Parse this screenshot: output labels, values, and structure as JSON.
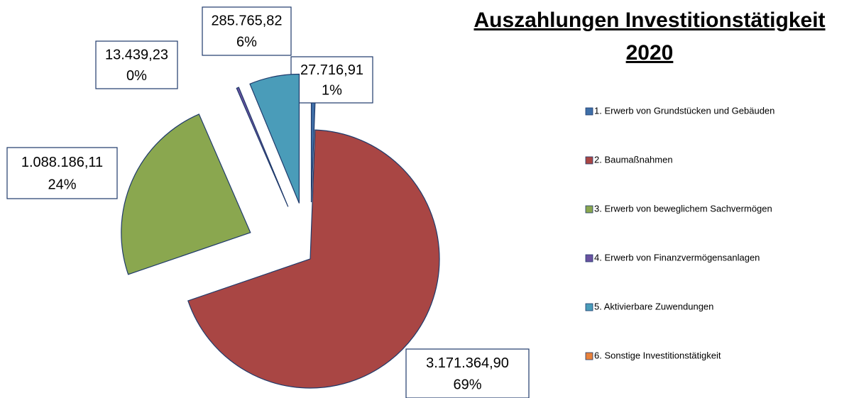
{
  "chart_data": {
    "type": "pie",
    "title": "Auszahlungen Investitionstätigkeit",
    "subtitle": "2020",
    "categories": [
      "1. Erwerb von Grundstücken und Gebäuden",
      "2. Baumaßnahmen",
      "3. Erwerb von beweglichem Sachvermögen",
      "4. Erwerb von Finanzvermögensanlagen",
      "5. Aktivierbare Zuwendungen",
      "6. Sonstige Investitionstätigkeit"
    ],
    "values": [
      27716.91,
      3171364.9,
      1088186.11,
      13439.23,
      285765.82,
      0
    ],
    "value_labels": [
      "27.716,91",
      "3.171.364,90",
      "1.088.186,11",
      "13.439,23",
      "285.765,82",
      null
    ],
    "percent_labels": [
      "1%",
      "69%",
      "24%",
      "0%",
      "6%",
      null
    ],
    "colors": [
      "#3f6fa8",
      "#a94644",
      "#8aa74f",
      "#6a52a0",
      "#4a9cb9",
      "#e8813a"
    ],
    "legend": "right"
  }
}
